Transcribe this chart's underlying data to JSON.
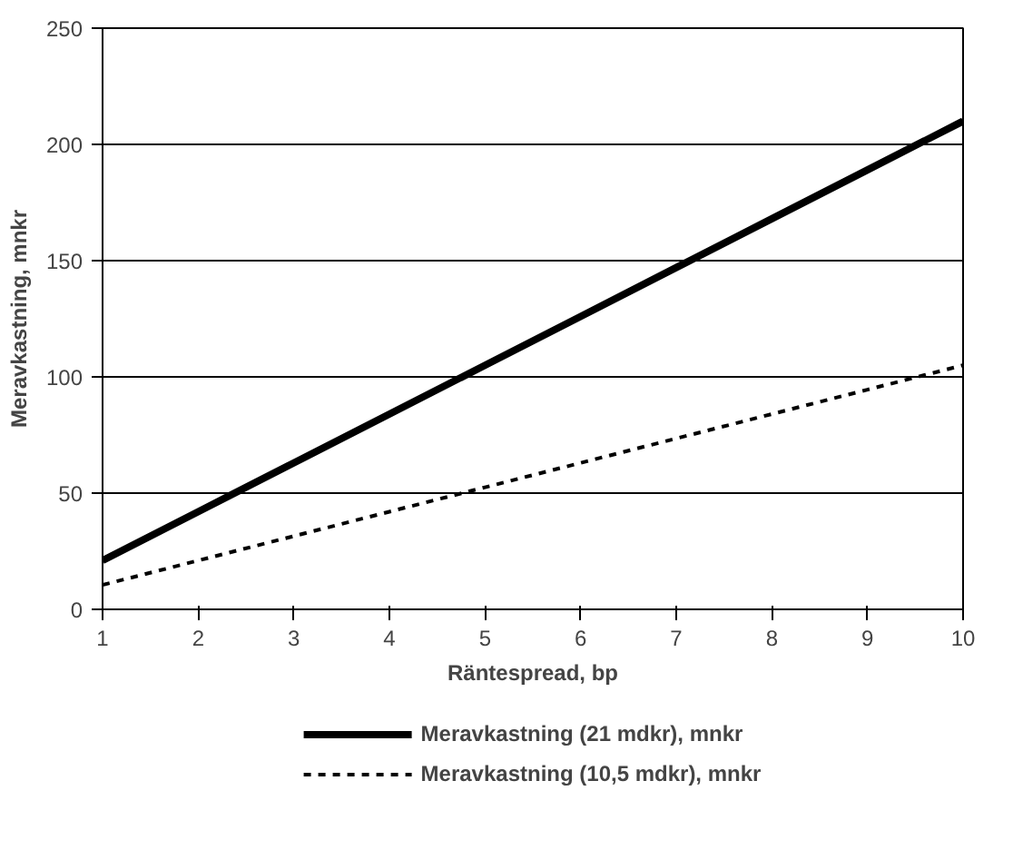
{
  "chart_data": {
    "type": "line",
    "xlabel": "Räntespread, bp",
    "ylabel": "Meravkastning, mnkr",
    "x": [
      1,
      2,
      3,
      4,
      5,
      6,
      7,
      8,
      9,
      10
    ],
    "series": [
      {
        "name": "Meravkastning (21 mdkr), mnkr",
        "color": "#000000",
        "line_style": "solid",
        "values": [
          21,
          42,
          63,
          84,
          105,
          126,
          147,
          168,
          189,
          210
        ]
      },
      {
        "name": "Meravkastning (10,5 mdkr), mnkr",
        "color": "#000000",
        "line_style": "dashed",
        "values": [
          10.5,
          21,
          31.5,
          42,
          52.5,
          63,
          73.5,
          84,
          94.5,
          105
        ]
      }
    ],
    "xlim": [
      1,
      10
    ],
    "xticks": [
      1,
      2,
      3,
      4,
      5,
      6,
      7,
      8,
      9,
      10
    ],
    "ylim": [
      0,
      250
    ],
    "yticks": [
      0,
      50,
      100,
      150,
      200,
      250
    ],
    "grid": "y",
    "legend": "bottom",
    "marker": "none"
  }
}
